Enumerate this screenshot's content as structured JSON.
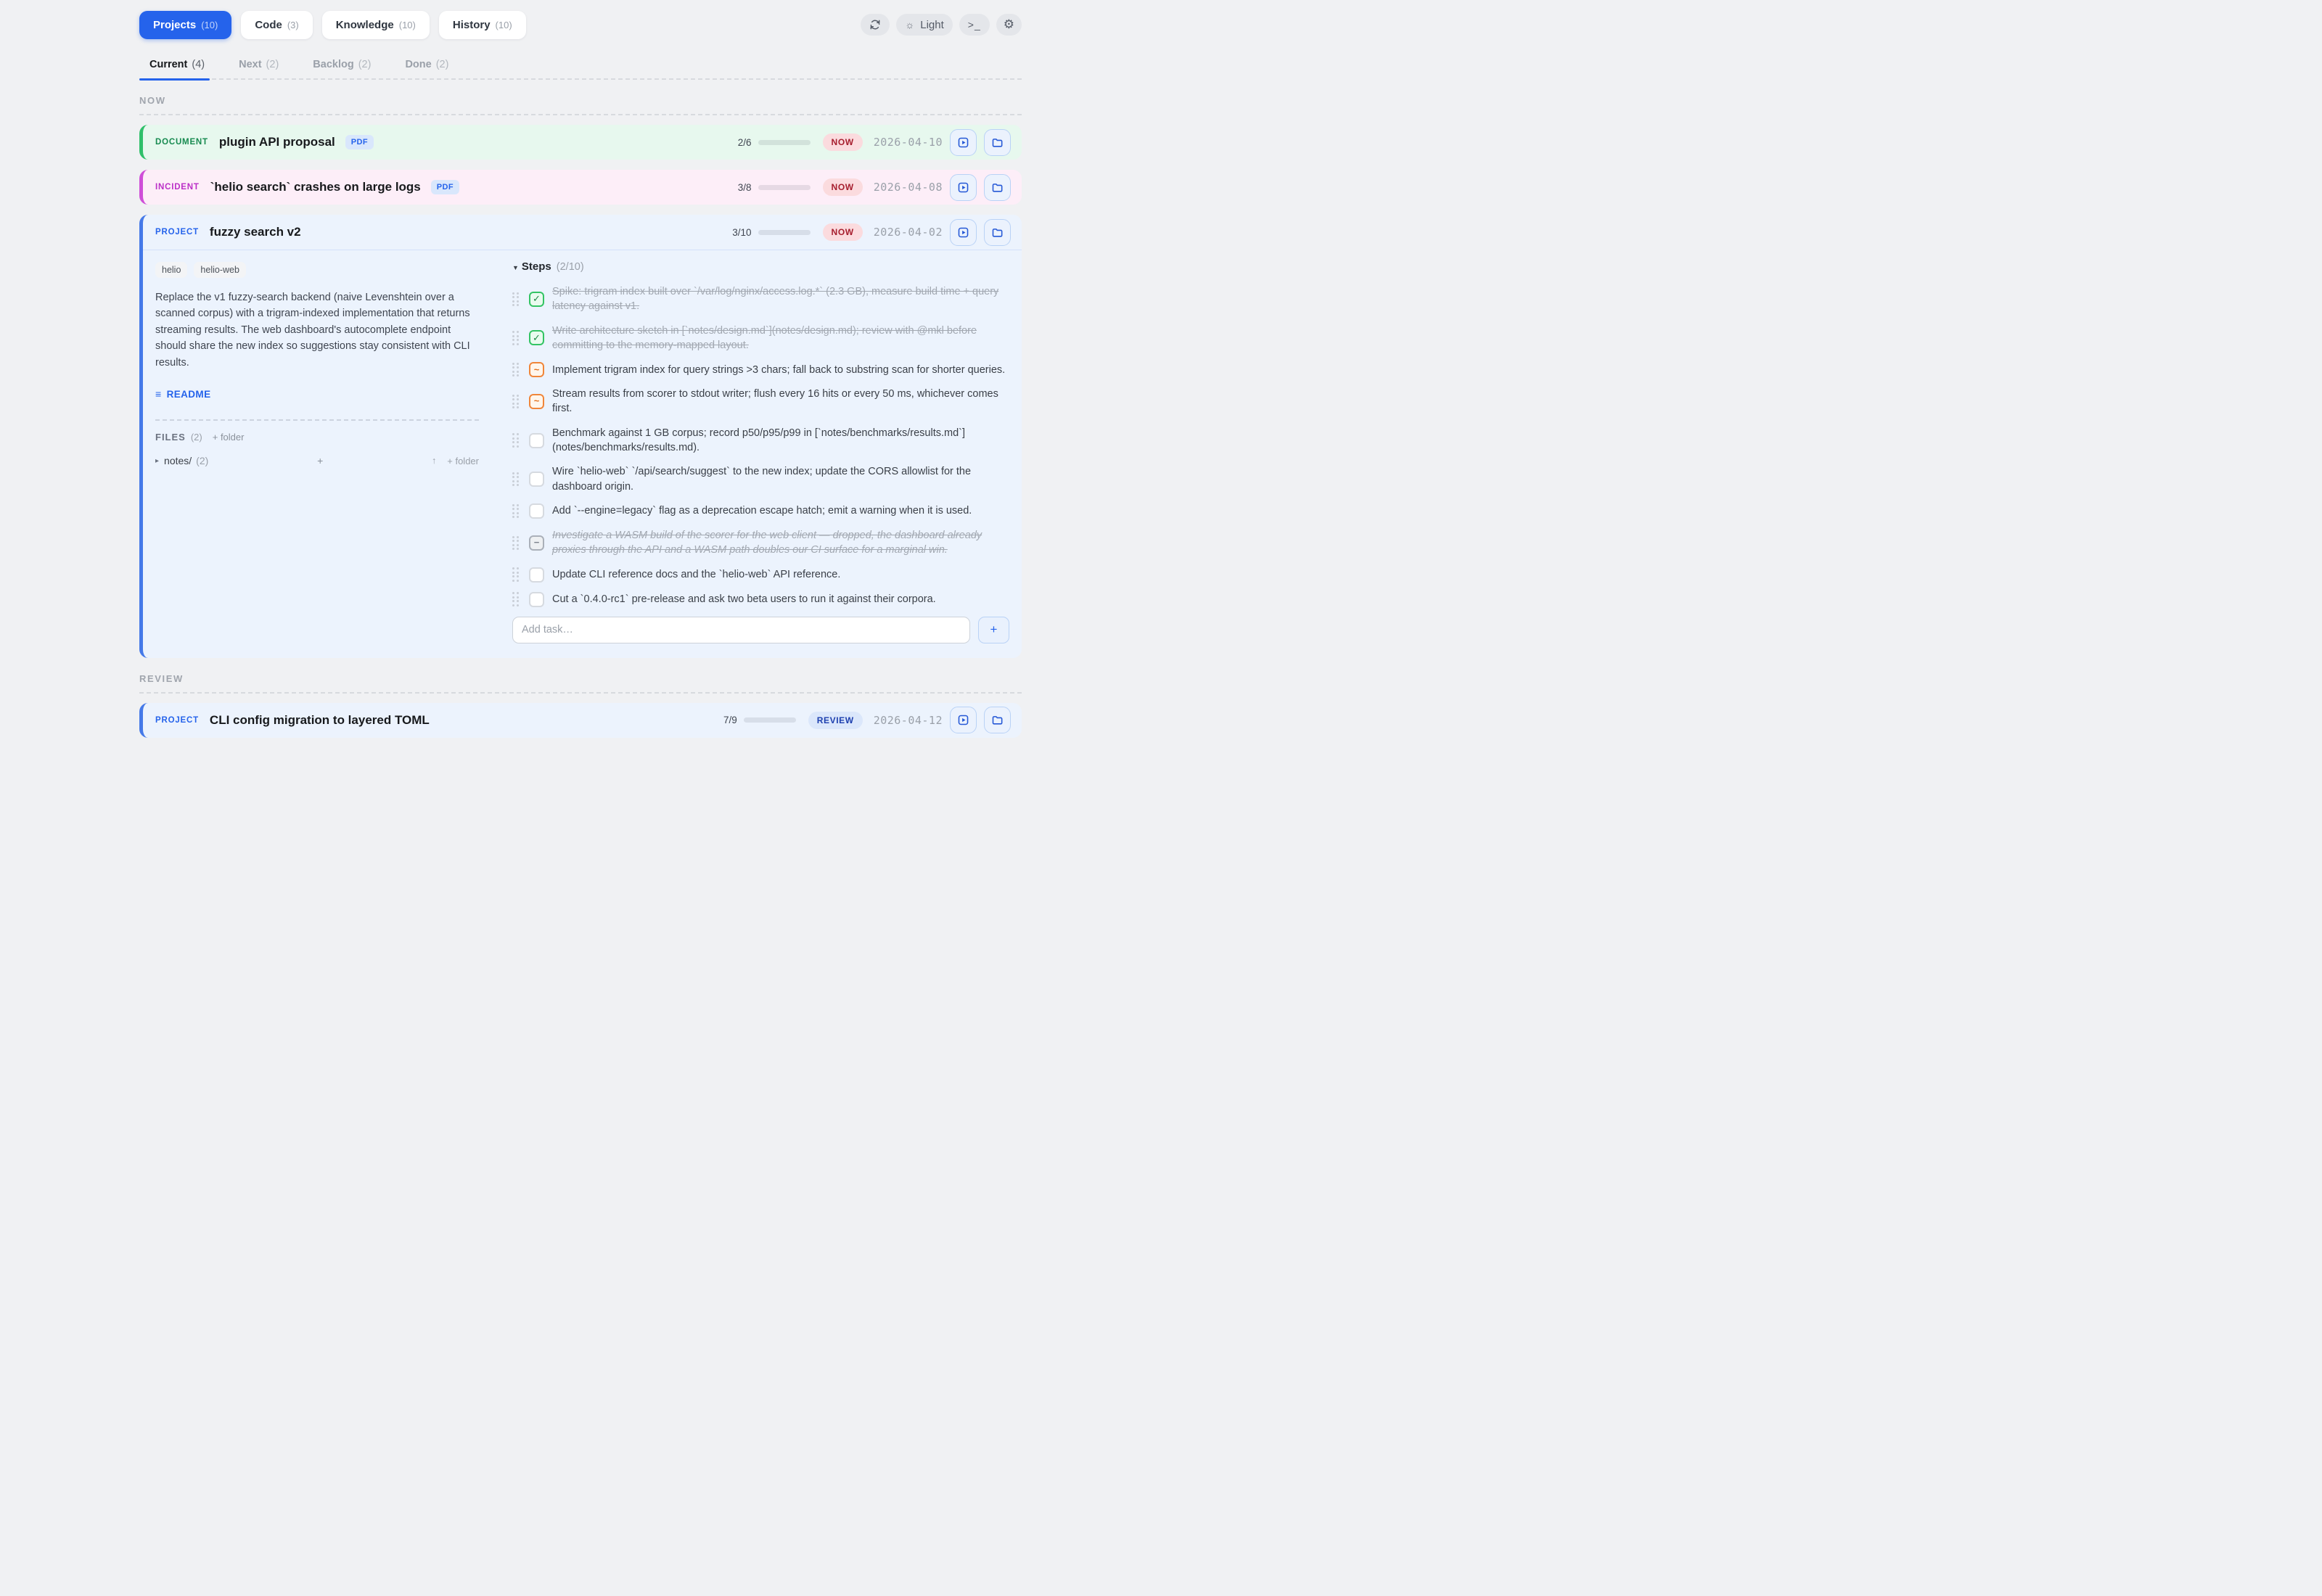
{
  "header": {
    "tabs": [
      {
        "label": "Projects",
        "count": "10",
        "active": true
      },
      {
        "label": "Code",
        "count": "3",
        "active": false
      },
      {
        "label": "Knowledge",
        "count": "10",
        "active": false
      },
      {
        "label": "History",
        "count": "10",
        "active": false
      }
    ],
    "tools": {
      "theme_label": "Light",
      "terminal_label": ">_"
    }
  },
  "subtabs": [
    {
      "label": "Current",
      "count": "4",
      "active": true
    },
    {
      "label": "Next",
      "count": "2",
      "active": false
    },
    {
      "label": "Backlog",
      "count": "2",
      "active": false
    },
    {
      "label": "Done",
      "count": "2",
      "active": false
    }
  ],
  "sections": {
    "now": "NOW",
    "review": "REVIEW"
  },
  "cards": {
    "document": {
      "type_label": "DOCUMENT",
      "title": "plugin API proposal",
      "format_badge": "PDF",
      "progress": {
        "label": "2/6",
        "pct": 33
      },
      "status": "NOW",
      "date": "2026-04-10"
    },
    "incident": {
      "type_label": "INCIDENT",
      "title": "`helio search` crashes on large logs",
      "format_badge": "PDF",
      "progress": {
        "label": "3/8",
        "pct": 37
      },
      "status": "NOW",
      "date": "2026-04-08"
    },
    "project": {
      "type_label": "PROJECT",
      "title": "fuzzy search v2",
      "progress": {
        "label": "3/10",
        "pct": 30
      },
      "status": "NOW",
      "date": "2026-04-02",
      "tags": [
        "helio",
        "helio-web"
      ],
      "description": "Replace the v1 fuzzy-search backend (naive Levenshtein over a scanned corpus) with a trigram-indexed implementation that returns streaming results. The web dashboard's autocomplete endpoint should share the new index so suggestions stay consistent with CLI results.",
      "readme_label": "README",
      "files": {
        "title": "FILES",
        "count": "(2)",
        "add_folder_label": "+ folder",
        "rows": [
          {
            "name": "notes/",
            "count": "(2)",
            "add_file_label": "+",
            "move_up_label": "↑",
            "add_subfolder_label": "+ folder"
          }
        ]
      },
      "steps": {
        "title": "Steps",
        "count": "(2/10)",
        "items": [
          {
            "state": "done",
            "text": "Spike: trigram index built over `/var/log/nginx/access.log.*` (2.3 GB), measure build time + query latency against v1."
          },
          {
            "state": "done",
            "text": "Write architecture sketch in [`notes/design.md`](notes/design.md); review with @mkl before committing to the memory-mapped layout."
          },
          {
            "state": "active",
            "text": "Implement trigram index for query strings >3 chars; fall back to substring scan for shorter queries."
          },
          {
            "state": "active",
            "text": "Stream results from scorer to stdout writer; flush every 16 hits or every 50 ms, whichever comes first."
          },
          {
            "state": "todo",
            "text": "Benchmark against 1 GB corpus; record p50/p95/p99 in [`notes/benchmarks/results.md`](notes/benchmarks/results.md)."
          },
          {
            "state": "todo",
            "text": "Wire `helio-web` `/api/search/suggest` to the new index; update the CORS allowlist for the dashboard origin."
          },
          {
            "state": "todo",
            "text": "Add `--engine=legacy` flag as a deprecation escape hatch; emit a warning when it is used."
          },
          {
            "state": "dropped",
            "text": "Investigate a WASM build of the scorer for the web client — dropped, the dashboard already proxies through the API and a WASM path doubles our CI surface for a marginal win."
          },
          {
            "state": "todo",
            "text": "Update CLI reference docs and the `helio-web` API reference."
          },
          {
            "state": "todo",
            "text": "Cut a `0.4.0-rc1` pre-release and ask two beta users to run it against their corpora."
          }
        ],
        "add_placeholder": "Add task…",
        "add_button_label": "+"
      }
    },
    "review_project": {
      "type_label": "PROJECT",
      "title": "CLI config migration to layered TOML",
      "progress": {
        "label": "7/9",
        "pct": 78
      },
      "status": "REVIEW",
      "date": "2026-04-12"
    }
  }
}
